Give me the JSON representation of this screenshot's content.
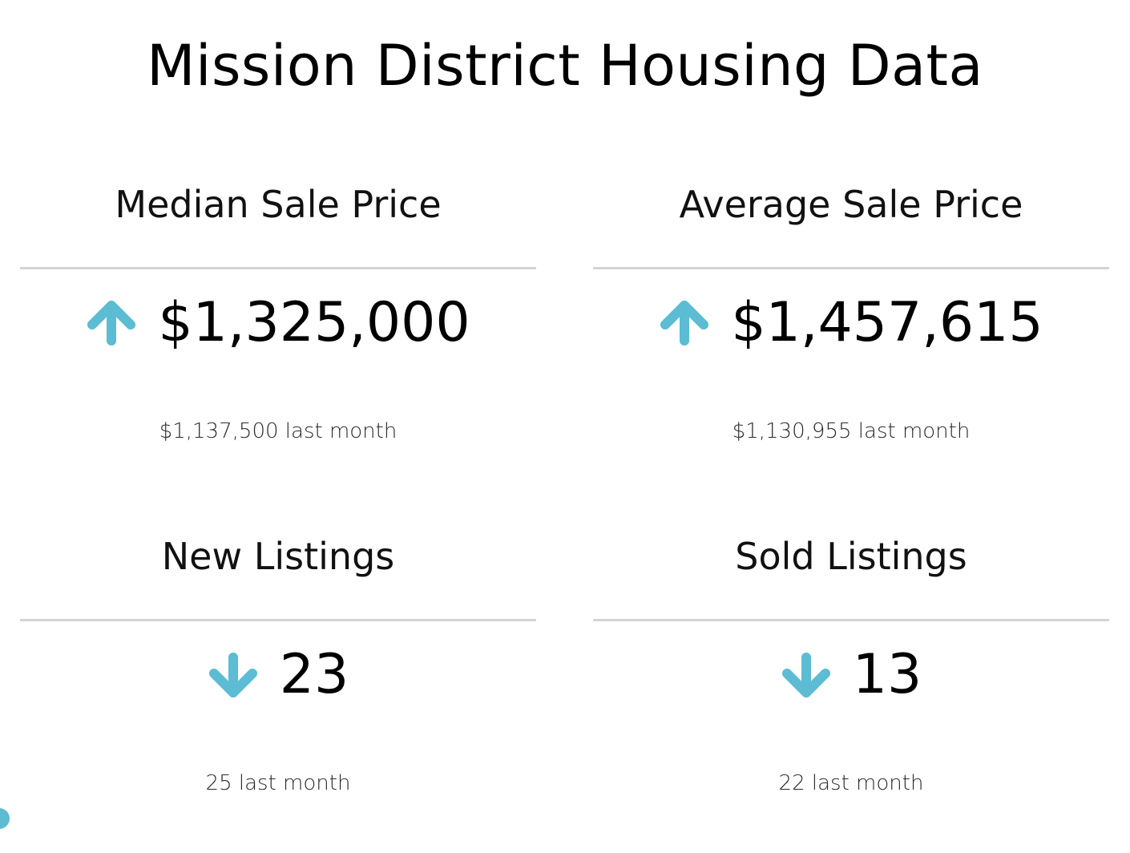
{
  "title": "Mission District Housing Data",
  "colors": {
    "accent": "#5bbcd4",
    "text": "#000000",
    "divider": "#d4d4d4"
  },
  "cards": [
    {
      "label": "Median Sale Price",
      "value": "$1,325,000",
      "trend": "up",
      "trend_icon": "arrow-up-icon",
      "previous": "$1,137,500 last month"
    },
    {
      "label": "Average Sale Price",
      "value": "$1,457,615",
      "trend": "up",
      "trend_icon": "arrow-up-icon",
      "previous": "$1,130,955 last month"
    },
    {
      "label": "New Listings",
      "value": "23",
      "trend": "down",
      "trend_icon": "arrow-down-icon",
      "previous": "25 last month"
    },
    {
      "label": "Sold Listings",
      "value": "13",
      "trend": "down",
      "trend_icon": "arrow-down-icon",
      "previous": "22 last month"
    }
  ]
}
